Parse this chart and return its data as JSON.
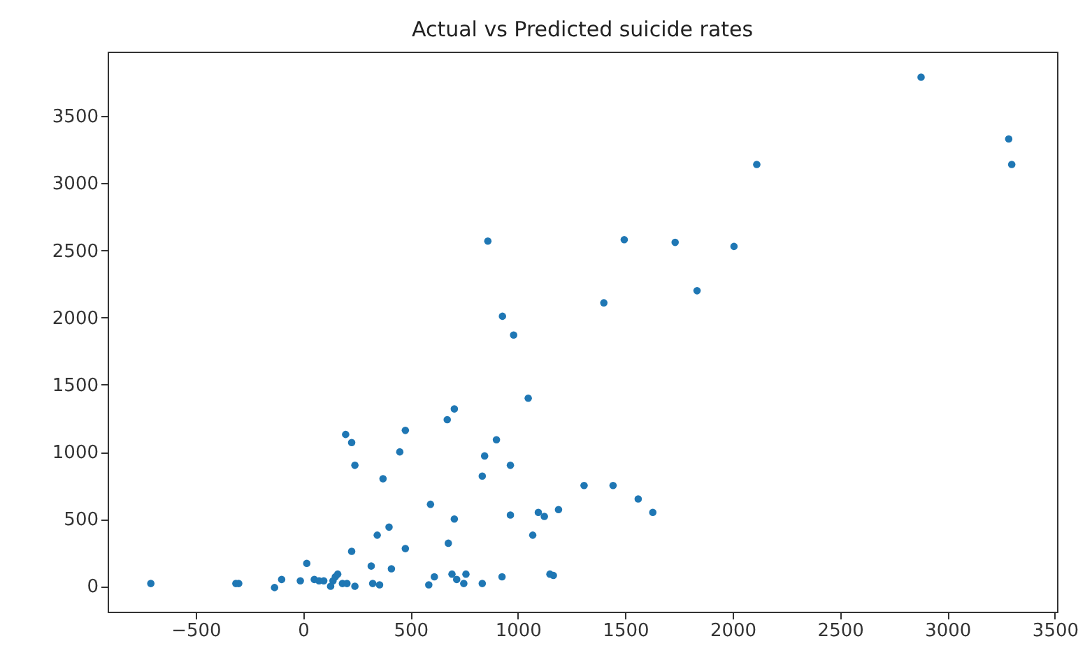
{
  "chart_data": {
    "type": "scatter",
    "title": "Actual vs Predicted suicide rates",
    "marker": "circle",
    "grid": false,
    "xlim": [
      -910,
      3510
    ],
    "xticks": [
      -500,
      0,
      500,
      1000,
      1500,
      2000,
      2500,
      3000,
      3500
    ],
    "ylim": [
      -190,
      3980
    ],
    "yticks": [
      0,
      500,
      1000,
      1500,
      2000,
      2500,
      3000,
      3500
    ],
    "series": [
      {
        "color": "#1f77b4",
        "x": [
          860,
          928,
          980,
          2877,
          3285,
          3299,
          2112,
          1495,
          1732,
          2006,
          1834,
          1400,
          1308,
          1443,
          1560,
          1628,
          1189,
          -709,
          -313,
          -300,
          -133,
          -100,
          -13,
          17,
          52,
          74,
          96,
          139,
          150,
          161,
          128,
          183,
          204,
          241,
          226,
          198,
          226,
          241,
          317,
          324,
          356,
          345,
          400,
          411,
          372,
          450,
          476,
          476,
          585,
          611,
          593,
          671,
          704,
          676,
          704,
          693,
          715,
          748,
          758,
          834,
          834,
          845,
          900,
          926,
          965,
          965,
          1048,
          1069,
          1095,
          1123,
          1149,
          1165
        ],
        "values": [
          2570,
          2010,
          1870,
          3790,
          3330,
          3140,
          3140,
          2580,
          2560,
          2530,
          2200,
          2110,
          750,
          750,
          650,
          550,
          570,
          20,
          20,
          20,
          -10,
          50,
          40,
          170,
          50,
          40,
          40,
          40,
          70,
          90,
          0,
          20,
          20,
          0,
          260,
          1130,
          1070,
          900,
          150,
          20,
          10,
          380,
          440,
          130,
          800,
          1000,
          1160,
          280,
          10,
          70,
          610,
          1240,
          1320,
          320,
          500,
          90,
          50,
          20,
          90,
          20,
          820,
          970,
          1090,
          70,
          900,
          530,
          1400,
          380,
          550,
          520,
          90,
          80
        ]
      }
    ]
  }
}
